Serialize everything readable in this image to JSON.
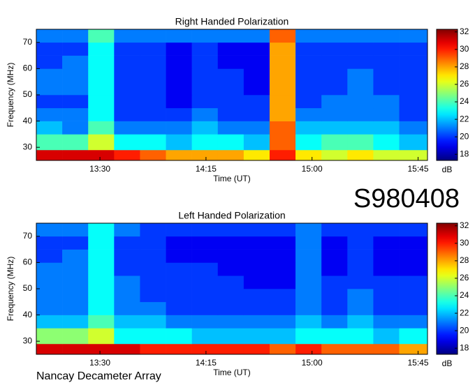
{
  "page_title": "S980408",
  "footer": "Nancay Decameter Array",
  "chart_data": [
    {
      "type": "heatmap",
      "title": "Right Handed Polarization",
      "x_label": "Time (UT)",
      "y_label": "Frequency (MHz)",
      "colorbar_label": "dB",
      "colormap": "jet",
      "x_edges": [
        783,
        794,
        805,
        816,
        827,
        838,
        849,
        860,
        871,
        882,
        893,
        904,
        915,
        926,
        937,
        949
      ],
      "y_edges": [
        25,
        29,
        35,
        40,
        45,
        50,
        55,
        60,
        65,
        70,
        75
      ],
      "values": [
        [
          31,
          31,
          31,
          30,
          29,
          28,
          28,
          28,
          27,
          30,
          27,
          26,
          27,
          26,
          26
        ],
        [
          24,
          24,
          26,
          23,
          23,
          22,
          23,
          23,
          22,
          29,
          23,
          24,
          24,
          23,
          22
        ],
        [
          22,
          21,
          24,
          21,
          21,
          21,
          22,
          21,
          21,
          29,
          22,
          22,
          22,
          22,
          21
        ],
        [
          21,
          21,
          23,
          20,
          20,
          20,
          21,
          20,
          20,
          28,
          21,
          21,
          21,
          21,
          20
        ],
        [
          20,
          20,
          23,
          20,
          20,
          19,
          20,
          20,
          20,
          28,
          20,
          21,
          21,
          21,
          20
        ],
        [
          21,
          21,
          23,
          20,
          20,
          19,
          20,
          20,
          19,
          28,
          20,
          20,
          21,
          20,
          20
        ],
        [
          21,
          21,
          23,
          20,
          20,
          19,
          20,
          20,
          19,
          28,
          20,
          20,
          21,
          20,
          20
        ],
        [
          20,
          21,
          23,
          20,
          20,
          19,
          20,
          19,
          19,
          28,
          20,
          20,
          20,
          20,
          20
        ],
        [
          20,
          20,
          23,
          20,
          20,
          19,
          20,
          19,
          19,
          28,
          20,
          20,
          20,
          20,
          20
        ],
        [
          21,
          21,
          24,
          21,
          21,
          21,
          21,
          21,
          21,
          29,
          21,
          21,
          21,
          21,
          21
        ]
      ],
      "xlim": [
        783,
        949
      ],
      "ylim": [
        25,
        75
      ],
      "clim": [
        17.3,
        32.3
      ],
      "xticks": [
        {
          "value": 810,
          "label": "13:30"
        },
        {
          "value": 855,
          "label": "14:15"
        },
        {
          "value": 900,
          "label": "15:00"
        },
        {
          "value": 945,
          "label": "15:45"
        }
      ],
      "yticks": [
        30,
        40,
        50,
        60,
        70
      ],
      "cticks": [
        18,
        20,
        22,
        24,
        26,
        28,
        30,
        32
      ]
    },
    {
      "type": "heatmap",
      "title": "Left Handed Polarization",
      "x_label": "Time (UT)",
      "y_label": "Frequency (MHz)",
      "colorbar_label": "dB",
      "colormap": "jet",
      "x_edges": [
        783,
        794,
        805,
        816,
        827,
        838,
        849,
        860,
        871,
        882,
        893,
        904,
        915,
        926,
        937,
        949
      ],
      "y_edges": [
        25,
        29,
        35,
        40,
        45,
        50,
        55,
        60,
        65,
        70,
        75
      ],
      "values": [
        [
          31,
          31,
          31,
          31,
          30,
          30,
          30,
          30,
          30,
          29,
          30,
          29,
          29,
          29,
          28
        ],
        [
          25,
          25,
          26,
          23,
          23,
          23,
          22,
          22,
          22,
          22,
          23,
          23,
          23,
          22,
          23
        ],
        [
          22,
          22,
          24,
          22,
          22,
          21,
          21,
          21,
          21,
          21,
          22,
          21,
          22,
          21,
          21
        ],
        [
          21,
          21,
          23,
          21,
          21,
          20,
          20,
          20,
          20,
          20,
          21,
          20,
          21,
          20,
          20
        ],
        [
          21,
          21,
          23,
          21,
          20,
          20,
          20,
          20,
          20,
          20,
          21,
          20,
          21,
          20,
          20
        ],
        [
          21,
          21,
          23,
          21,
          20,
          20,
          20,
          20,
          19,
          19,
          21,
          20,
          20,
          20,
          20
        ],
        [
          21,
          21,
          23,
          20,
          20,
          20,
          20,
          19,
          19,
          19,
          21,
          19,
          20,
          19,
          19
        ],
        [
          20,
          21,
          23,
          20,
          20,
          19,
          19,
          19,
          19,
          19,
          21,
          19,
          20,
          19,
          19
        ],
        [
          20,
          20,
          23,
          20,
          20,
          19,
          19,
          19,
          19,
          19,
          21,
          19,
          20,
          19,
          19
        ],
        [
          21,
          21,
          23,
          21,
          20,
          20,
          20,
          20,
          20,
          20,
          21,
          20,
          20,
          20,
          20
        ]
      ],
      "xlim": [
        783,
        949
      ],
      "ylim": [
        25,
        75
      ],
      "clim": [
        17.3,
        32.3
      ],
      "xticks": [
        {
          "value": 810,
          "label": "13:30"
        },
        {
          "value": 855,
          "label": "14:15"
        },
        {
          "value": 900,
          "label": "15:00"
        },
        {
          "value": 945,
          "label": "15:45"
        }
      ],
      "yticks": [
        30,
        40,
        50,
        60,
        70
      ],
      "cticks": [
        18,
        20,
        22,
        24,
        26,
        28,
        30,
        32
      ]
    }
  ]
}
